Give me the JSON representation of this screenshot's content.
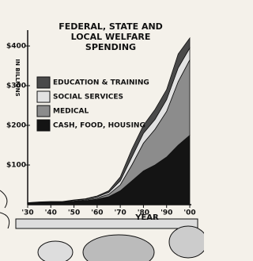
{
  "chart_data": {
    "type": "stacked_area",
    "title": [
      "FEDERAL, STATE AND",
      "LOCAL WELFARE",
      "SPENDING"
    ],
    "y_label": "IN BILLIONS",
    "x_label": "YEAR",
    "x": [
      1930,
      1935,
      1940,
      1945,
      1950,
      1955,
      1960,
      1965,
      1970,
      1975,
      1980,
      1985,
      1990,
      1995,
      2000
    ],
    "series": [
      {
        "name": "EDUCATION & TRAINING",
        "color": "#4a4a4a",
        "values": [
          0,
          1,
          1,
          1,
          1,
          1,
          2,
          4,
          10,
          20,
          20,
          25,
          25,
          35,
          25
        ]
      },
      {
        "name": "SOCIAL SERVICES",
        "color": "#e2e2e2",
        "values": [
          1,
          1,
          1,
          1,
          2,
          2,
          3,
          5,
          10,
          20,
          25,
          25,
          30,
          35,
          30
        ]
      },
      {
        "name": "MEDICAL",
        "color": "#8c8c8c",
        "values": [
          0,
          0,
          0,
          0,
          1,
          2,
          3,
          6,
          15,
          40,
          70,
          90,
          115,
          160,
          190
        ]
      },
      {
        "name": "CASH, FOOD, HOUSING",
        "color": "#141414",
        "values": [
          4,
          5,
          6,
          6,
          8,
          10,
          14,
          20,
          35,
          60,
          85,
          100,
          120,
          150,
          175
        ]
      }
    ],
    "xlim": [
      1930,
      2000
    ],
    "xticks": [
      {
        "value": 1930,
        "label": "'30"
      },
      {
        "value": 1940,
        "label": "'40"
      },
      {
        "value": 1950,
        "label": "'50"
      },
      {
        "value": 1960,
        "label": "'60"
      },
      {
        "value": 1970,
        "label": "'70"
      },
      {
        "value": 1980,
        "label": "'80"
      },
      {
        "value": 1990,
        "label": "'90"
      },
      {
        "value": 2000,
        "label": "'00"
      }
    ],
    "ylim": [
      0,
      430
    ],
    "yticks": [
      {
        "value": 100,
        "label": "$100"
      },
      {
        "value": 200,
        "label": "$200"
      },
      {
        "value": 300,
        "label": "$300"
      },
      {
        "value": 400,
        "label": "$400"
      }
    ]
  }
}
